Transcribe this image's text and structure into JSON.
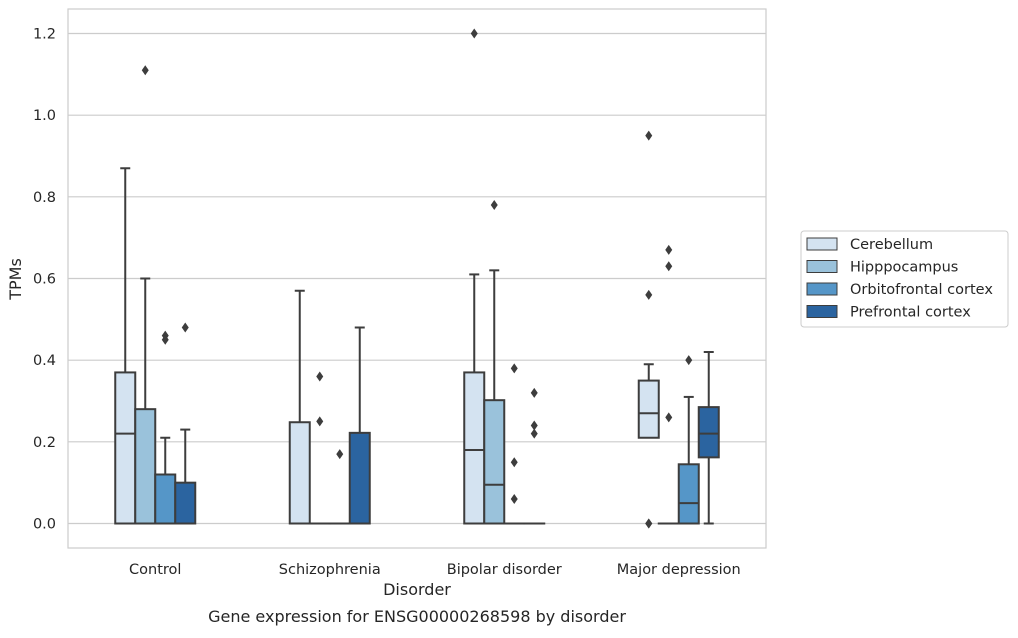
{
  "chart_data": {
    "type": "box",
    "title": "",
    "caption": "Gene expression for ENSG00000268598 by disorder",
    "xlabel": "Disorder",
    "ylabel": "TPMs",
    "ylim": [
      -0.06,
      1.26
    ],
    "yticks": [
      "0.0",
      "0.2",
      "0.4",
      "0.6",
      "0.8",
      "1.0",
      "1.2"
    ],
    "grid": true,
    "legend_position": "right",
    "categories": [
      "Control",
      "Schizophrenia",
      "Bipolar disorder",
      "Major depression"
    ],
    "series": [
      {
        "name": "Cerebellum",
        "color": "#d4e3f1",
        "boxes": [
          {
            "q1": 0.0,
            "median": 0.22,
            "q3": 0.37,
            "whisker_low": 0.0,
            "whisker_high": 0.87,
            "outliers": []
          },
          {
            "q1": 0.0,
            "median": 0.0,
            "q3": 0.248,
            "whisker_low": 0.0,
            "whisker_high": 0.57,
            "outliers": []
          },
          {
            "q1": 0.0,
            "median": 0.18,
            "q3": 0.37,
            "whisker_low": 0.0,
            "whisker_high": 0.61,
            "outliers": [
              1.2
            ]
          },
          {
            "q1": 0.21,
            "median": 0.27,
            "q3": 0.35,
            "whisker_low": 0.21,
            "whisker_high": 0.39,
            "outliers": [
              0.95,
              0.56,
              0.0,
              0.0
            ]
          }
        ]
      },
      {
        "name": "Hipppocampus",
        "color": "#9ac2db",
        "boxes": [
          {
            "q1": 0.0,
            "median": 0.0,
            "q3": 0.28,
            "whisker_low": 0.0,
            "whisker_high": 0.6,
            "outliers": [
              1.11
            ]
          },
          {
            "q1": 0.0,
            "median": 0.0,
            "q3": 0.0,
            "whisker_low": 0.0,
            "whisker_high": 0.0,
            "outliers": [
              0.36,
              0.25
            ]
          },
          {
            "q1": 0.0,
            "median": 0.095,
            "q3": 0.302,
            "whisker_low": 0.0,
            "whisker_high": 0.62,
            "outliers": [
              0.78
            ]
          },
          {
            "q1": 0.0,
            "median": 0.0,
            "q3": 0.0,
            "whisker_low": 0.0,
            "whisker_high": 0.0,
            "outliers": [
              0.67,
              0.63,
              0.26
            ]
          }
        ]
      },
      {
        "name": "Orbitofrontal cortex",
        "color": "#5596c8",
        "boxes": [
          {
            "q1": 0.0,
            "median": 0.0,
            "q3": 0.12,
            "whisker_low": 0.0,
            "whisker_high": 0.21,
            "outliers": [
              0.46,
              0.45
            ]
          },
          {
            "q1": 0.0,
            "median": 0.0,
            "q3": 0.0,
            "whisker_low": 0.0,
            "whisker_high": 0.0,
            "outliers": [
              0.17
            ]
          },
          {
            "q1": 0.0,
            "median": 0.0,
            "q3": 0.0,
            "whisker_low": 0.0,
            "whisker_high": 0.0,
            "outliers": [
              0.38,
              0.15,
              0.06
            ]
          },
          {
            "q1": 0.0,
            "median": 0.05,
            "q3": 0.145,
            "whisker_low": 0.0,
            "whisker_high": 0.31,
            "outliers": [
              0.4
            ]
          }
        ]
      },
      {
        "name": "Prefrontal cortex",
        "color": "#2b64a0",
        "boxes": [
          {
            "q1": 0.0,
            "median": 0.0,
            "q3": 0.1,
            "whisker_low": 0.0,
            "whisker_high": 0.23,
            "outliers": [
              0.48
            ]
          },
          {
            "q1": 0.0,
            "median": 0.0,
            "q3": 0.222,
            "whisker_low": 0.0,
            "whisker_high": 0.48,
            "outliers": []
          },
          {
            "q1": 0.0,
            "median": 0.0,
            "q3": 0.0,
            "whisker_low": 0.0,
            "whisker_high": 0.0,
            "outliers": [
              0.32,
              0.24,
              0.22
            ]
          },
          {
            "q1": 0.162,
            "median": 0.22,
            "q3": 0.285,
            "whisker_low": 0.0,
            "whisker_high": 0.42,
            "outliers": []
          }
        ]
      }
    ]
  }
}
